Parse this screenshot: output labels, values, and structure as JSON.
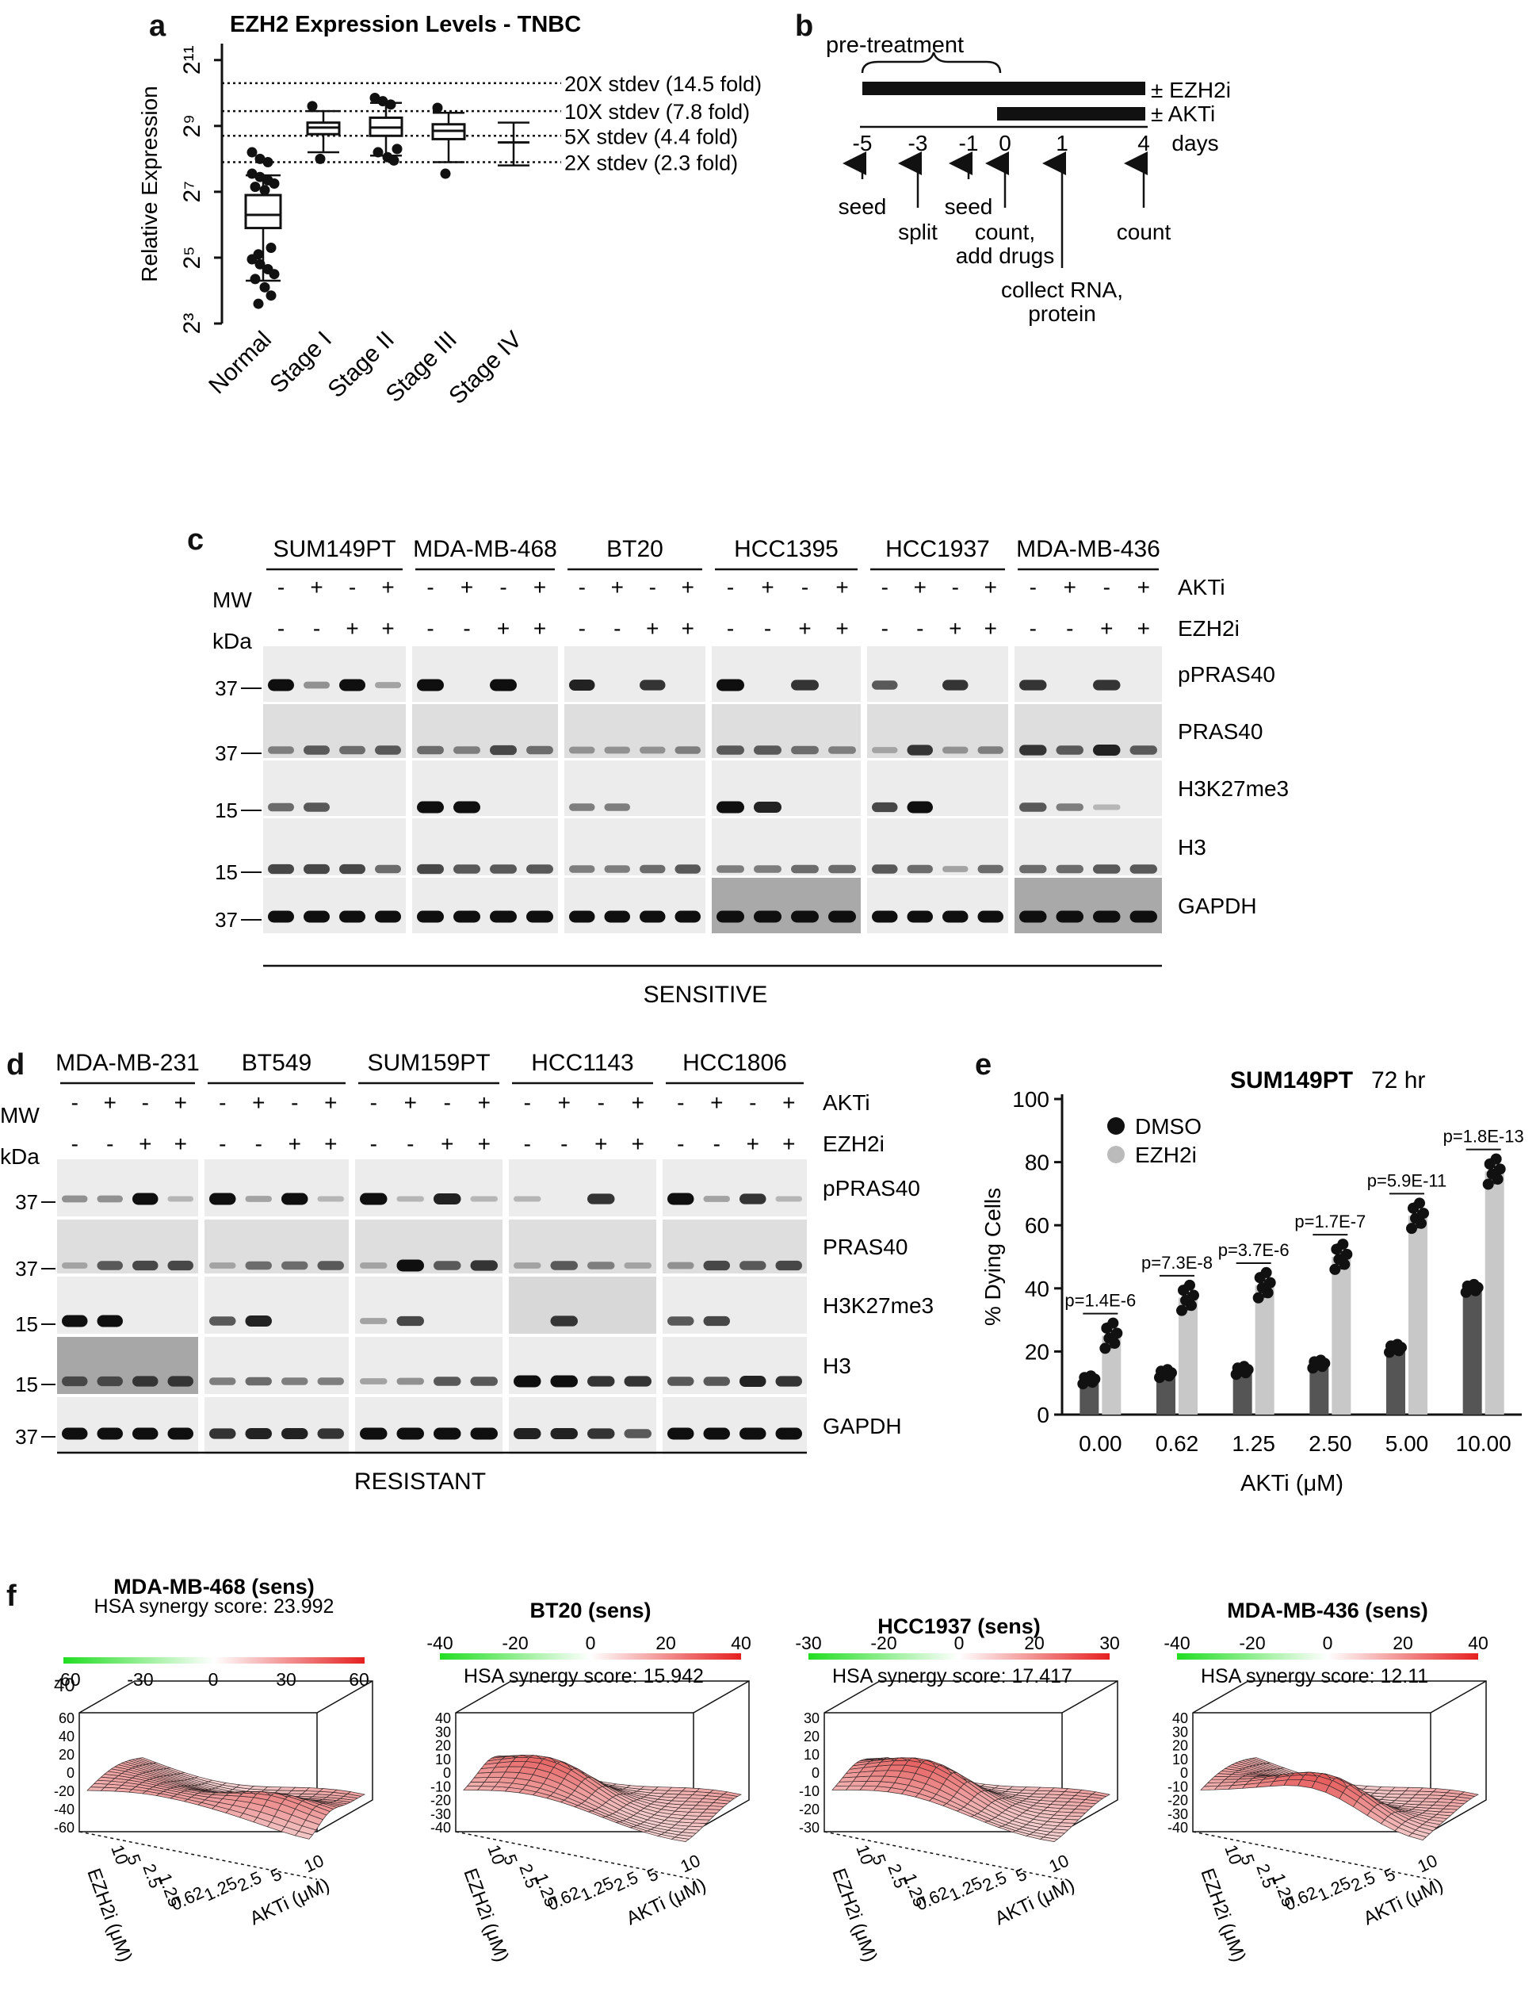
{
  "panel_a": {
    "letter": "a",
    "chart_data": {
      "type": "box",
      "title": "EZH2 Expression Levels - TNBC",
      "ylabel": "Relative Expression",
      "yscale": "log2",
      "y_ticks": [
        "2³",
        "2⁵",
        "2⁷",
        "2⁹",
        "2¹¹"
      ],
      "y_tick_exponents": [
        3,
        5,
        7,
        9,
        11
      ],
      "categories": [
        "Normal",
        "Stage I",
        "Stage II",
        "Stage III",
        "Stage IV"
      ],
      "boxes": [
        {
          "min": 4.3,
          "q1": 5.9,
          "median": 6.3,
          "q3": 6.9,
          "max": 7.5
        },
        {
          "min": 8.2,
          "q1": 8.75,
          "median": 8.95,
          "q3": 9.1,
          "max": 9.45
        },
        {
          "min": 8.1,
          "q1": 8.7,
          "median": 8.95,
          "q3": 9.25,
          "max": 9.7
        },
        {
          "min": 7.9,
          "q1": 8.6,
          "median": 8.85,
          "q3": 9.05,
          "max": 9.4
        },
        {
          "min": 7.8,
          "q1": 8.5,
          "median": 8.5,
          "q3": 8.5,
          "max": 9.1
        }
      ],
      "reference_lines": [
        {
          "label": "20X stdev (14.5 fold)",
          "y": 10.3
        },
        {
          "label": "10X stdev (7.8 fold)",
          "y": 9.45
        },
        {
          "label": "5X stdev (4.4 fold)",
          "y": 8.7
        },
        {
          "label": "2X stdev (2.3 fold)",
          "y": 7.9
        }
      ],
      "ylim": [
        3,
        11.5
      ]
    }
  },
  "panel_b": {
    "letter": "b",
    "pretreatment": "pre-treatment",
    "bar1_label": "± EZH2i",
    "bar2_label": "± AKTi",
    "days": [
      "-5",
      "-3",
      "-1",
      "0",
      "1",
      "4"
    ],
    "days_unit": "days",
    "events": [
      "seed",
      "split",
      "seed",
      "count,",
      "add drugs",
      "collect RNA,",
      "protein",
      "count"
    ]
  },
  "panel_c": {
    "letter": "c",
    "cell_lines": [
      "SUM149PT",
      "MDA-MB-468",
      "BT20",
      "HCC1395",
      "HCC1937",
      "MDA-MB-436"
    ],
    "akti_row": [
      "-",
      "+",
      "-",
      "+"
    ],
    "ezh2i_row": [
      "-",
      "-",
      "+",
      "+"
    ],
    "akti_label": "AKTi",
    "ezh2i_label": "EZH2i",
    "mw_label": "MW",
    "kda_label": "kDa",
    "markers": [
      "37",
      "37",
      "15",
      "15",
      "37"
    ],
    "blots": [
      "pPRAS40",
      "PRAS40",
      "H3K27me3",
      "H3",
      "GAPDH"
    ],
    "group_label": "SENSITIVE"
  },
  "panel_d": {
    "letter": "d",
    "cell_lines": [
      "MDA-MB-231",
      "BT549",
      "SUM159PT",
      "HCC1143",
      "HCC1806"
    ],
    "akti_row": [
      "-",
      "+",
      "-",
      "+"
    ],
    "ezh2i_row": [
      "-",
      "-",
      "+",
      "+"
    ],
    "akti_label": "AKTi",
    "ezh2i_label": "EZH2i",
    "mw_label": "MW",
    "kda_label": "kDa",
    "markers": [
      "37",
      "37",
      "15",
      "15",
      "37"
    ],
    "blots": [
      "pPRAS40",
      "PRAS40",
      "H3K27me3",
      "H3",
      "GAPDH"
    ],
    "group_label": "RESISTANT"
  },
  "panel_e": {
    "letter": "e",
    "chart_data": {
      "type": "bar",
      "title": "SUM149PT",
      "subtitle": "72 hr",
      "xlabel": "AKTi (μM)",
      "ylabel": "% Dying Cells",
      "categories": [
        "0.00",
        "0.62",
        "1.25",
        "2.50",
        "5.00",
        "10.00"
      ],
      "series": [
        {
          "name": "DMSO",
          "color": "#555555",
          "values": [
            11,
            13,
            14,
            16,
            21,
            40
          ]
        },
        {
          "name": "EZH2i",
          "color": "#c8c8c8",
          "values": [
            25,
            37,
            41,
            50,
            63,
            77
          ]
        }
      ],
      "p_values": [
        "p=1.4E-6",
        "p=7.3E-8",
        "p=3.7E-6",
        "p=1.7E-7",
        "p=5.9E-11",
        "p=1.8E-13"
      ],
      "ylim": [
        0,
        100
      ],
      "y_ticks": [
        0,
        20,
        40,
        60,
        80,
        100
      ]
    }
  },
  "panel_f": {
    "letter": "f",
    "stray_40": "40",
    "plots": [
      {
        "title": "MDA-MB-468 (sens)",
        "score": "HSA synergy score: 23.992",
        "scale": [
          "-60",
          "-30",
          "0",
          "30",
          "60"
        ],
        "z_ticks": [
          "60",
          "40",
          "20",
          "0",
          "-20",
          "-40",
          "-60"
        ],
        "ezh_label": "EZH2i (μM)",
        "ezh_ticks": [
          "10",
          "5",
          "2.5",
          "1.25"
        ],
        "akt_label": "AKTi (μM)",
        "akt_ticks": [
          "0.62",
          "1.25",
          "2.5",
          "5",
          "10"
        ]
      },
      {
        "title": "BT20 (sens)",
        "score": "HSA synergy score: 15.942",
        "scale": [
          "-40",
          "-20",
          "0",
          "20",
          "40"
        ],
        "z_ticks": [
          "40",
          "30",
          "20",
          "10",
          "0",
          "-10",
          "-20",
          "-30",
          "-40"
        ],
        "ezh_label": "EZH2i (μM)",
        "ezh_ticks": [
          "10",
          "5",
          "2.5",
          "1.25"
        ],
        "akt_label": "AKTi (μM)",
        "akt_ticks": [
          "0.62",
          "1.25",
          "2.5",
          "5",
          "10"
        ]
      },
      {
        "title": "HCC1937 (sens)",
        "score": "HSA synergy score: 17.417",
        "scale": [
          "-30",
          "-20",
          "0",
          "20",
          "30"
        ],
        "z_ticks": [
          "30",
          "20",
          "10",
          "0",
          "-10",
          "-20",
          "-30"
        ],
        "ezh_label": "EZH2i (μM)",
        "ezh_ticks": [
          "10",
          "5",
          "2.5",
          "1.25"
        ],
        "akt_label": "AKTi (μM)",
        "akt_ticks": [
          "0.62",
          "1.25",
          "2.5",
          "5",
          "10"
        ]
      },
      {
        "title": "MDA-MB-436 (sens)",
        "score": "HSA synergy score: 12.11",
        "scale": [
          "-40",
          "-20",
          "0",
          "20",
          "40"
        ],
        "z_ticks": [
          "40",
          "30",
          "20",
          "10",
          "0",
          "-10",
          "-20",
          "-30",
          "-40"
        ],
        "ezh_label": "EZH2i (μM)",
        "ezh_ticks": [
          "10",
          "5",
          "2.5",
          "1.25"
        ],
        "akt_label": "AKTi (μM)",
        "akt_ticks": [
          "0.62",
          "1.25",
          "2.5",
          "5",
          "10"
        ]
      }
    ]
  }
}
